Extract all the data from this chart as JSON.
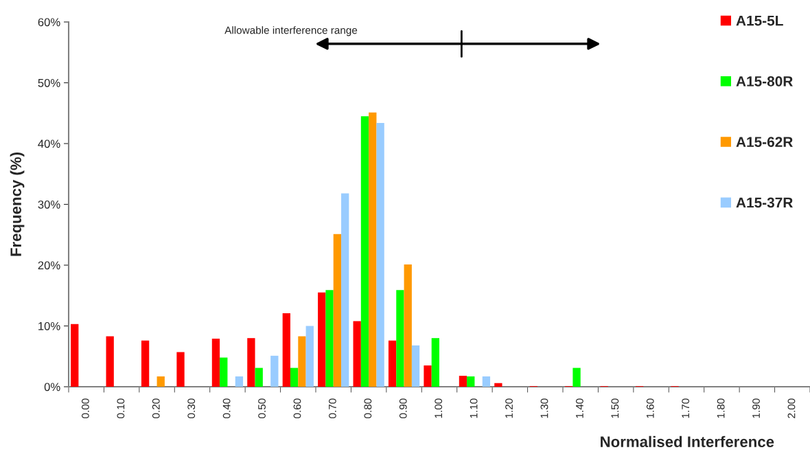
{
  "chart_data": {
    "type": "bar",
    "categories": [
      "0.00",
      "0.10",
      "0.20",
      "0.30",
      "0.40",
      "0.50",
      "0.60",
      "0.70",
      "0.80",
      "0.90",
      "1.00",
      "1.10",
      "1.20",
      "1.30",
      "1.40",
      "1.50",
      "1.60",
      "1.70",
      "1.80",
      "1.90",
      "2.00"
    ],
    "series": [
      {
        "name": "A15-5L",
        "color": "#ff0000",
        "values": [
          10.3,
          8.3,
          7.6,
          5.7,
          7.9,
          8.0,
          12.1,
          15.5,
          10.8,
          7.6,
          3.5,
          1.8,
          0.6,
          0.1,
          0.1,
          0.1,
          0.1,
          0.1,
          0,
          0,
          0
        ]
      },
      {
        "name": "A15-80R",
        "color": "#00ff00",
        "values": [
          0,
          0,
          0,
          0,
          4.8,
          3.1,
          3.1,
          15.9,
          44.5,
          15.9,
          8.0,
          1.7,
          0,
          0,
          3.1,
          0,
          0,
          0,
          0,
          0,
          0
        ]
      },
      {
        "name": "A15-62R",
        "color": "#ff9900",
        "values": [
          0,
          0,
          1.7,
          0,
          0,
          0,
          8.3,
          25.1,
          45.1,
          20.1,
          0,
          0,
          0,
          0,
          0,
          0,
          0,
          0,
          0,
          0,
          0
        ]
      },
      {
        "name": "A15-37R",
        "color": "#99ccff",
        "values": [
          0,
          0,
          0,
          0,
          1.7,
          5.1,
          10.0,
          31.8,
          43.4,
          6.8,
          0,
          1.7,
          0,
          0,
          0,
          0,
          0,
          0,
          0,
          0,
          0
        ]
      }
    ],
    "xlabel": "Normalised Interference",
    "ylabel": "Frequency (%)",
    "ylim": [
      0,
      60
    ],
    "yticks": [
      {
        "value": 0,
        "label": "0%"
      },
      {
        "value": 10,
        "label": "10%"
      },
      {
        "value": 20,
        "label": "20%"
      },
      {
        "value": 30,
        "label": "30%"
      },
      {
        "value": 40,
        "label": "40%"
      },
      {
        "value": 50,
        "label": "50%"
      },
      {
        "value": 60,
        "label": "60%"
      }
    ],
    "annotations": [
      "Allowable interference range"
    ],
    "legend": "top right",
    "grid": false
  }
}
